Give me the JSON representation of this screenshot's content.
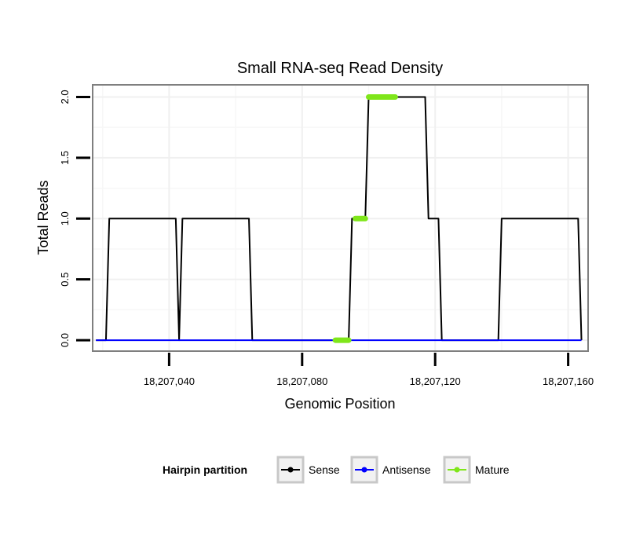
{
  "chart_data": {
    "type": "line",
    "title": "Small RNA-seq Read Density",
    "xlabel": "Genomic Position",
    "ylabel": "Total Reads",
    "xlim": [
      18207017,
      18207166
    ],
    "ylim": [
      -0.09,
      2.1
    ],
    "x_ticks": [
      {
        "value": 18207040,
        "label": "18,207,040"
      },
      {
        "value": 18207080,
        "label": "18,207,080"
      },
      {
        "value": 18207120,
        "label": "18,207,120"
      },
      {
        "value": 18207160,
        "label": "18,207,160"
      }
    ],
    "y_ticks": [
      {
        "value": 0.0,
        "label": "0.0"
      },
      {
        "value": 0.5,
        "label": "0.5"
      },
      {
        "value": 1.0,
        "label": "1.0"
      },
      {
        "value": 1.5,
        "label": "1.5"
      },
      {
        "value": 2.0,
        "label": "2.0"
      }
    ],
    "grid": true,
    "legend": {
      "title": "Hairpin partition",
      "position": "bottom",
      "entries": [
        {
          "name": "Sense",
          "color": "#000000"
        },
        {
          "name": "Antisense",
          "color": "#0000ff"
        },
        {
          "name": "Mature",
          "color": "#7fe61a"
        }
      ]
    },
    "series": [
      {
        "name": "Sense",
        "color": "#000000",
        "points": [
          [
            18207018,
            0
          ],
          [
            18207021,
            0
          ],
          [
            18207022,
            1
          ],
          [
            18207042,
            1
          ],
          [
            18207043,
            0
          ],
          [
            18207044,
            1
          ],
          [
            18207064,
            1
          ],
          [
            18207065,
            0
          ],
          [
            18207094,
            0
          ],
          [
            18207095,
            1
          ],
          [
            18207099,
            1
          ],
          [
            18207100,
            2
          ],
          [
            18207117,
            2
          ],
          [
            18207118,
            1
          ],
          [
            18207121,
            1
          ],
          [
            18207122,
            0
          ],
          [
            18207139,
            0
          ],
          [
            18207140,
            1
          ],
          [
            18207163,
            1
          ],
          [
            18207164,
            0
          ]
        ]
      },
      {
        "name": "Antisense",
        "color": "#0000ff",
        "points": [
          [
            18207018,
            0
          ],
          [
            18207164,
            0
          ]
        ]
      },
      {
        "name": "Mature",
        "color": "#7fe61a",
        "segments": [
          {
            "x": [
              18207090,
              18207094
            ],
            "y": 0
          },
          {
            "x": [
              18207096,
              18207099
            ],
            "y": 1
          },
          {
            "x": [
              18207100,
              18207108
            ],
            "y": 2
          }
        ]
      }
    ]
  }
}
